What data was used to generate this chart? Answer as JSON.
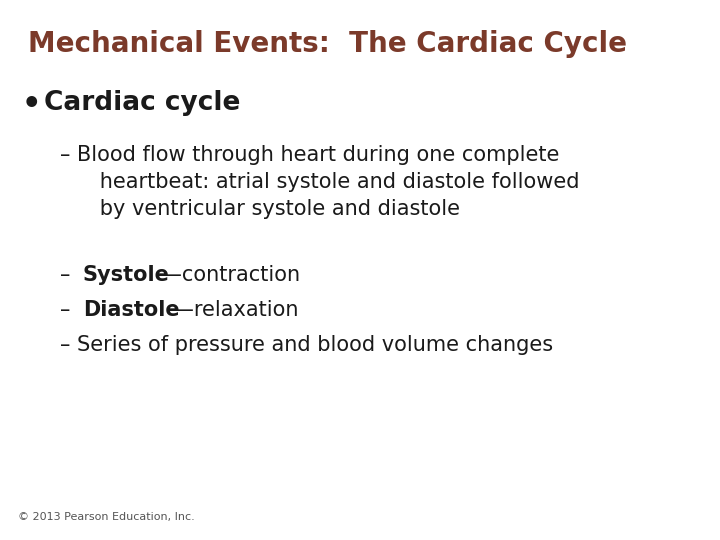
{
  "title": "Mechanical Events:  The Cardiac Cycle",
  "title_color": "#7B3A2A",
  "title_fontsize": 20,
  "background_color": "#FFFFFF",
  "text_color": "#1A1A1A",
  "bullet_label": "Cardiac cycle",
  "bullet_fontsize": 19,
  "sub_fontsize": 15,
  "sub_items": [
    {
      "bold_part": "",
      "normal_part": "Blood flow through heart during one complete\n      heartbeat: atrial systole and diastole followed\n      by ventricular systole and diastole"
    },
    {
      "bold_part": "Systole",
      "normal_part": "—contraction"
    },
    {
      "bold_part": "Diastole",
      "normal_part": "—relaxation"
    },
    {
      "bold_part": "",
      "normal_part": "Series of pressure and blood volume changes"
    }
  ],
  "footer": "© 2013 Pearson Education, Inc.",
  "footer_fontsize": 8,
  "footer_color": "#555555"
}
